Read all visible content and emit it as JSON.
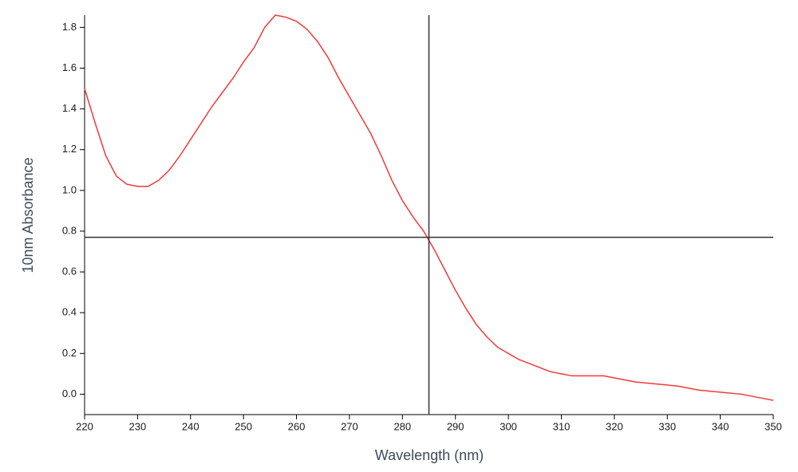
{
  "chart_data": {
    "type": "line",
    "x_label": "Wavelength (nm)",
    "y_label": "10nm Absorbance",
    "xlim": [
      220,
      350
    ],
    "ylim": [
      -0.1,
      1.86
    ],
    "xticks": [
      220,
      230,
      240,
      250,
      260,
      270,
      280,
      290,
      300,
      310,
      320,
      330,
      340,
      350
    ],
    "yticks": [
      {
        "value": 0,
        "label": "0.0"
      },
      0.2,
      0.4,
      0.6,
      0.8,
      {
        "value": 1,
        "label": "1.0"
      },
      1.2,
      1.4,
      1.6,
      1.8
    ],
    "crosshair": {
      "x": 285,
      "y": 0.77,
      "color": "#333333"
    },
    "series": [
      {
        "color": "#f03a3a",
        "x": [
          220,
          222,
          224,
          226,
          228,
          230,
          232,
          234,
          236,
          238,
          240,
          242,
          244,
          246,
          248,
          250,
          252,
          254,
          256,
          258,
          260,
          262,
          264,
          266,
          268,
          270,
          272,
          274,
          276,
          278,
          280,
          282,
          284,
          286,
          288,
          290,
          292,
          294,
          296,
          298,
          300,
          302,
          304,
          306,
          308,
          310,
          312,
          316,
          318,
          320,
          322,
          324,
          328,
          332,
          336,
          340,
          344,
          348,
          350
        ],
        "values": [
          1.5,
          1.33,
          1.17,
          1.07,
          1.03,
          1.02,
          1.02,
          1.05,
          1.1,
          1.17,
          1.25,
          1.33,
          1.41,
          1.48,
          1.55,
          1.63,
          1.7,
          1.8,
          1.86,
          1.85,
          1.83,
          1.79,
          1.73,
          1.65,
          1.55,
          1.46,
          1.37,
          1.28,
          1.17,
          1.05,
          0.95,
          0.87,
          0.8,
          0.71,
          0.61,
          0.51,
          0.42,
          0.34,
          0.28,
          0.23,
          0.2,
          0.17,
          0.15,
          0.13,
          0.11,
          0.1,
          0.09,
          0.09,
          0.09,
          0.08,
          0.07,
          0.06,
          0.05,
          0.04,
          0.02,
          0.01,
          0.0,
          -0.02,
          -0.03
        ]
      }
    ]
  }
}
